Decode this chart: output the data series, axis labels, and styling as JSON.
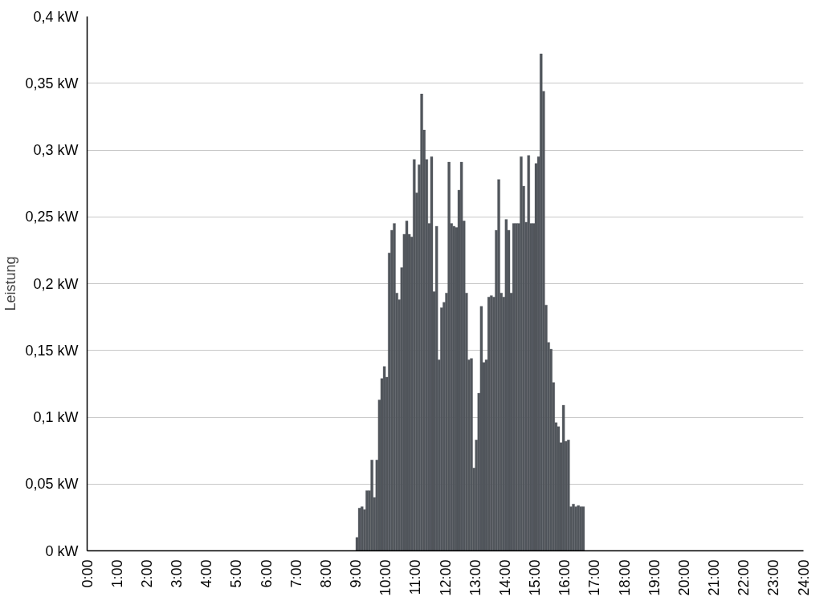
{
  "chart_data": {
    "type": "bar",
    "ylabel": "Leistung",
    "x": [
      9,
      9.083,
      9.167,
      9.25,
      9.333,
      9.417,
      9.5,
      9.583,
      9.667,
      9.75,
      9.833,
      9.917,
      10,
      10.083,
      10.167,
      10.25,
      10.333,
      10.417,
      10.5,
      10.583,
      10.667,
      10.75,
      10.833,
      10.917,
      11,
      11.083,
      11.167,
      11.25,
      11.333,
      11.417,
      11.5,
      11.583,
      11.667,
      11.75,
      11.833,
      11.917,
      12,
      12.083,
      12.167,
      12.25,
      12.333,
      12.417,
      12.5,
      12.583,
      12.667,
      12.75,
      12.833,
      12.917,
      13,
      13.083,
      13.167,
      13.25,
      13.333,
      13.417,
      13.5,
      13.583,
      13.667,
      13.75,
      13.833,
      13.917,
      14,
      14.083,
      14.167,
      14.25,
      14.333,
      14.417,
      14.5,
      14.583,
      14.667,
      14.75,
      14.833,
      14.917,
      15,
      15.083,
      15.167,
      15.25,
      15.333,
      15.417,
      15.5,
      15.583,
      15.667,
      15.75,
      15.833,
      15.917,
      16,
      16.083,
      16.167,
      16.25,
      16.333,
      16.417,
      16.5,
      16.583
    ],
    "series": [
      {
        "color": "#51565c",
        "values": [
          0.01,
          0.032,
          0.033,
          0.031,
          0.045,
          0.045,
          0.068,
          0.04,
          0.068,
          0.113,
          0.129,
          0.138,
          0.13,
          0.223,
          0.24,
          0.245,
          0.193,
          0.188,
          0.212,
          0.237,
          0.247,
          0.237,
          0.235,
          0.293,
          0.268,
          0.289,
          0.342,
          0.315,
          0.293,
          0.245,
          0.295,
          0.194,
          0.243,
          0.143,
          0.182,
          0.186,
          0.193,
          0.291,
          0.245,
          0.243,
          0.242,
          0.27,
          0.291,
          0.247,
          0.193,
          0.143,
          0.144,
          0.062,
          0.083,
          0.118,
          0.183,
          0.141,
          0.143,
          0.19,
          0.191,
          0.19,
          0.24,
          0.278,
          0.193,
          0.19,
          0.248,
          0.24,
          0.193,
          0.245,
          0.245,
          0.245,
          0.295,
          0.273,
          0.246,
          0.296,
          0.245,
          0.245,
          0.29,
          0.295,
          0.372,
          0.344,
          0.184,
          0.156,
          0.151,
          0.126,
          0.096,
          0.093,
          0.081,
          0.109,
          0.082,
          0.083,
          0.033,
          0.035,
          0.033,
          0.034,
          0.033,
          0.033
        ]
      }
    ],
    "xlim": [
      0,
      24
    ],
    "xticks": [
      {
        "value": 0,
        "label": "0:00"
      },
      {
        "value": 1,
        "label": "1:00"
      },
      {
        "value": 2,
        "label": "2:00"
      },
      {
        "value": 3,
        "label": "3:00"
      },
      {
        "value": 4,
        "label": "4:00"
      },
      {
        "value": 5,
        "label": "5:00"
      },
      {
        "value": 6,
        "label": "6:00"
      },
      {
        "value": 7,
        "label": "7:00"
      },
      {
        "value": 8,
        "label": "8:00"
      },
      {
        "value": 9,
        "label": "9:00"
      },
      {
        "value": 10,
        "label": "10:00"
      },
      {
        "value": 11,
        "label": "11:00"
      },
      {
        "value": 12,
        "label": "12:00"
      },
      {
        "value": 13,
        "label": "13:00"
      },
      {
        "value": 14,
        "label": "14:00"
      },
      {
        "value": 15,
        "label": "15:00"
      },
      {
        "value": 16,
        "label": "16:00"
      },
      {
        "value": 17,
        "label": "17:00"
      },
      {
        "value": 18,
        "label": "18:00"
      },
      {
        "value": 19,
        "label": "19:00"
      },
      {
        "value": 20,
        "label": "20:00"
      },
      {
        "value": 21,
        "label": "21:00"
      },
      {
        "value": 22,
        "label": "22:00"
      },
      {
        "value": 23,
        "label": "23:00"
      },
      {
        "value": 24,
        "label": "24:00"
      }
    ],
    "ylim": [
      0,
      0.4
    ],
    "yticks": [
      {
        "value": 0,
        "label": "0 kW"
      },
      {
        "value": 0.05,
        "label": "0,05 kW"
      },
      {
        "value": 0.1,
        "label": "0,1 kW"
      },
      {
        "value": 0.15,
        "label": "0,15 kW"
      },
      {
        "value": 0.2,
        "label": "0,2 kW"
      },
      {
        "value": 0.25,
        "label": "0,25 kW"
      },
      {
        "value": 0.3,
        "label": "0,3 kW"
      },
      {
        "value": 0.35,
        "label": "0,35 kW"
      },
      {
        "value": 0.4,
        "label": "0,4 kW"
      }
    ],
    "grid": "y"
  }
}
